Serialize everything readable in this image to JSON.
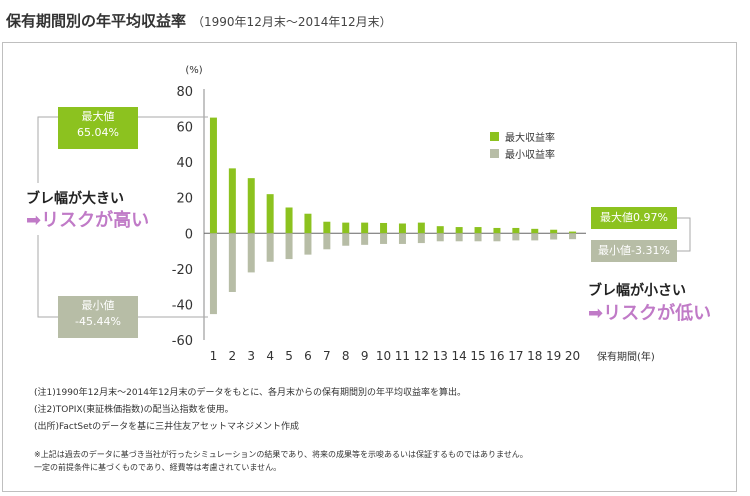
{
  "header": {
    "title": "保有期間別の年平均収益率",
    "subtitle": "（1990年12月末～2014年12月末）"
  },
  "chart_data": {
    "type": "bar",
    "ylabel": "(%)",
    "xlabel": "保有期間(年)",
    "ylim": [
      -60,
      80
    ],
    "yticks": [
      80,
      60,
      40,
      20,
      0,
      -20,
      -40,
      -60
    ],
    "categories": [
      "1",
      "2",
      "3",
      "4",
      "5",
      "6",
      "7",
      "8",
      "9",
      "10",
      "11",
      "12",
      "13",
      "14",
      "15",
      "16",
      "17",
      "18",
      "19",
      "20"
    ],
    "series": [
      {
        "name": "最大収益率",
        "color": "#8cc21f",
        "values": [
          65.04,
          36.5,
          31.0,
          22.0,
          14.5,
          11.0,
          6.5,
          6.0,
          6.0,
          5.8,
          5.5,
          6.0,
          4.0,
          3.5,
          3.5,
          3.0,
          3.0,
          2.5,
          2.0,
          0.97
        ]
      },
      {
        "name": "最小収益率",
        "color": "#b7bda6",
        "values": [
          -45.44,
          -33.0,
          -22.0,
          -16.0,
          -14.5,
          -12.0,
          -9.0,
          -7.0,
          -6.5,
          -6.0,
          -6.0,
          -5.5,
          -4.5,
          -4.5,
          -4.5,
          -4.5,
          -4.0,
          -4.0,
          -3.5,
          -3.31
        ]
      }
    ],
    "legend_position": "top-right",
    "grid": false
  },
  "annotations": {
    "max_label": "最大値",
    "max_value": "65.04%",
    "min_label": "最小値",
    "min_value": "-45.44%",
    "right_max": "最大値0.97%",
    "right_min": "最小値-3.31%",
    "left_text_1": "ブレ幅が大きい",
    "left_text_2": "➡リスクが高い",
    "right_text_1": "ブレ幅が小さい",
    "right_text_2": "➡リスクが低い"
  },
  "notes": [
    "(注1)1990年12月末～2014年12月末のデータをもとに、各月末からの保有期間別の年平均収益率を算出。",
    "(注2)TOPIX(東証株価指数)の配当込指数を使用。",
    "(出所)FactSetのデータを基に三井住友アセットマネジメント作成"
  ],
  "disclaimer": [
    "※上記は過去のデータに基づき当社が行ったシミュレーションの結果であり、将来の成果等を示唆あるいは保証するものではありません。",
    "一定の前提条件に基づくものであり、経費等は考慮されていません。"
  ]
}
